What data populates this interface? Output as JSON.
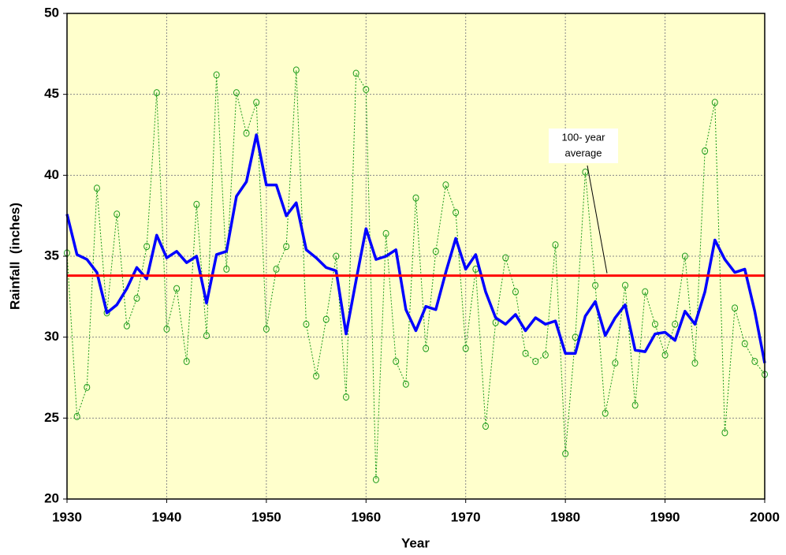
{
  "chart_data": {
    "type": "line",
    "xlabel": "Year",
    "ylabel": "Rainfall  (inches)",
    "x": [
      1930,
      1931,
      1932,
      1933,
      1934,
      1935,
      1936,
      1937,
      1938,
      1939,
      1940,
      1941,
      1942,
      1943,
      1944,
      1945,
      1946,
      1947,
      1948,
      1949,
      1950,
      1951,
      1952,
      1953,
      1954,
      1955,
      1956,
      1957,
      1958,
      1959,
      1960,
      1961,
      1962,
      1963,
      1964,
      1965,
      1966,
      1967,
      1968,
      1969,
      1970,
      1971,
      1972,
      1973,
      1974,
      1975,
      1976,
      1977,
      1978,
      1979,
      1980,
      1981,
      1982,
      1983,
      1984,
      1985,
      1986,
      1987,
      1988,
      1989,
      1990,
      1991,
      1992,
      1993,
      1994,
      1995,
      1996,
      1997,
      1998,
      1999,
      2000
    ],
    "series": [
      {
        "color": "#1a9a1a",
        "style": "dotted",
        "markers": true,
        "values": [
          35.2,
          25.1,
          26.9,
          39.2,
          31.5,
          37.6,
          30.7,
          32.4,
          35.6,
          45.1,
          30.5,
          33.0,
          28.5,
          38.2,
          30.1,
          46.2,
          34.2,
          45.1,
          42.6,
          44.5,
          30.5,
          34.2,
          35.6,
          46.5,
          30.8,
          27.6,
          31.1,
          35.0,
          26.3,
          46.3,
          45.3,
          21.2,
          36.4,
          28.5,
          27.1,
          38.6,
          29.3,
          35.3,
          39.4,
          37.7,
          29.3,
          34.2,
          24.5,
          30.9,
          34.9,
          32.8,
          29.0,
          28.5,
          28.9,
          35.7,
          22.8,
          30.0,
          40.2,
          33.2,
          25.3,
          28.4,
          33.2,
          25.8,
          32.8,
          30.8,
          28.9,
          30.8,
          35.0,
          28.4,
          41.5,
          44.5,
          24.1,
          31.8,
          29.6,
          28.5,
          27.7
        ]
      },
      {
        "color": "#0000ff",
        "style": "solid",
        "markers": false,
        "values": [
          37.6,
          35.1,
          34.8,
          34.0,
          31.5,
          32.0,
          33.0,
          34.3,
          33.6,
          36.3,
          34.9,
          35.3,
          34.6,
          35.0,
          32.1,
          35.1,
          35.3,
          38.7,
          39.6,
          42.5,
          39.4,
          39.4,
          37.5,
          38.3,
          35.4,
          34.9,
          34.3,
          34.1,
          30.2,
          33.5,
          36.7,
          34.8,
          35.0,
          35.4,
          31.7,
          30.4,
          31.9,
          31.7,
          34.0,
          36.1,
          34.2,
          35.1,
          32.8,
          31.2,
          30.8,
          31.4,
          30.4,
          31.2,
          30.8,
          31.0,
          29.0,
          29.0,
          31.3,
          32.2,
          30.1,
          31.2,
          32.0,
          29.2,
          29.1,
          30.2,
          30.3,
          29.8,
          31.6,
          30.8,
          32.8,
          36.0,
          34.8,
          34.0,
          34.2,
          31.6,
          28.4
        ]
      }
    ],
    "reference_line": {
      "value": 33.8,
      "color": "#ff0000"
    },
    "annotation": {
      "text": [
        "100- year",
        "average"
      ]
    },
    "xlim": [
      1930,
      2000
    ],
    "xticks": [
      1930,
      1940,
      1950,
      1960,
      1970,
      1980,
      1990,
      2000
    ],
    "ylim": [
      20,
      50
    ],
    "yticks": [
      20,
      25,
      30,
      35,
      40,
      45,
      50
    ],
    "grid": true,
    "plot_background": "#ffffcc"
  }
}
